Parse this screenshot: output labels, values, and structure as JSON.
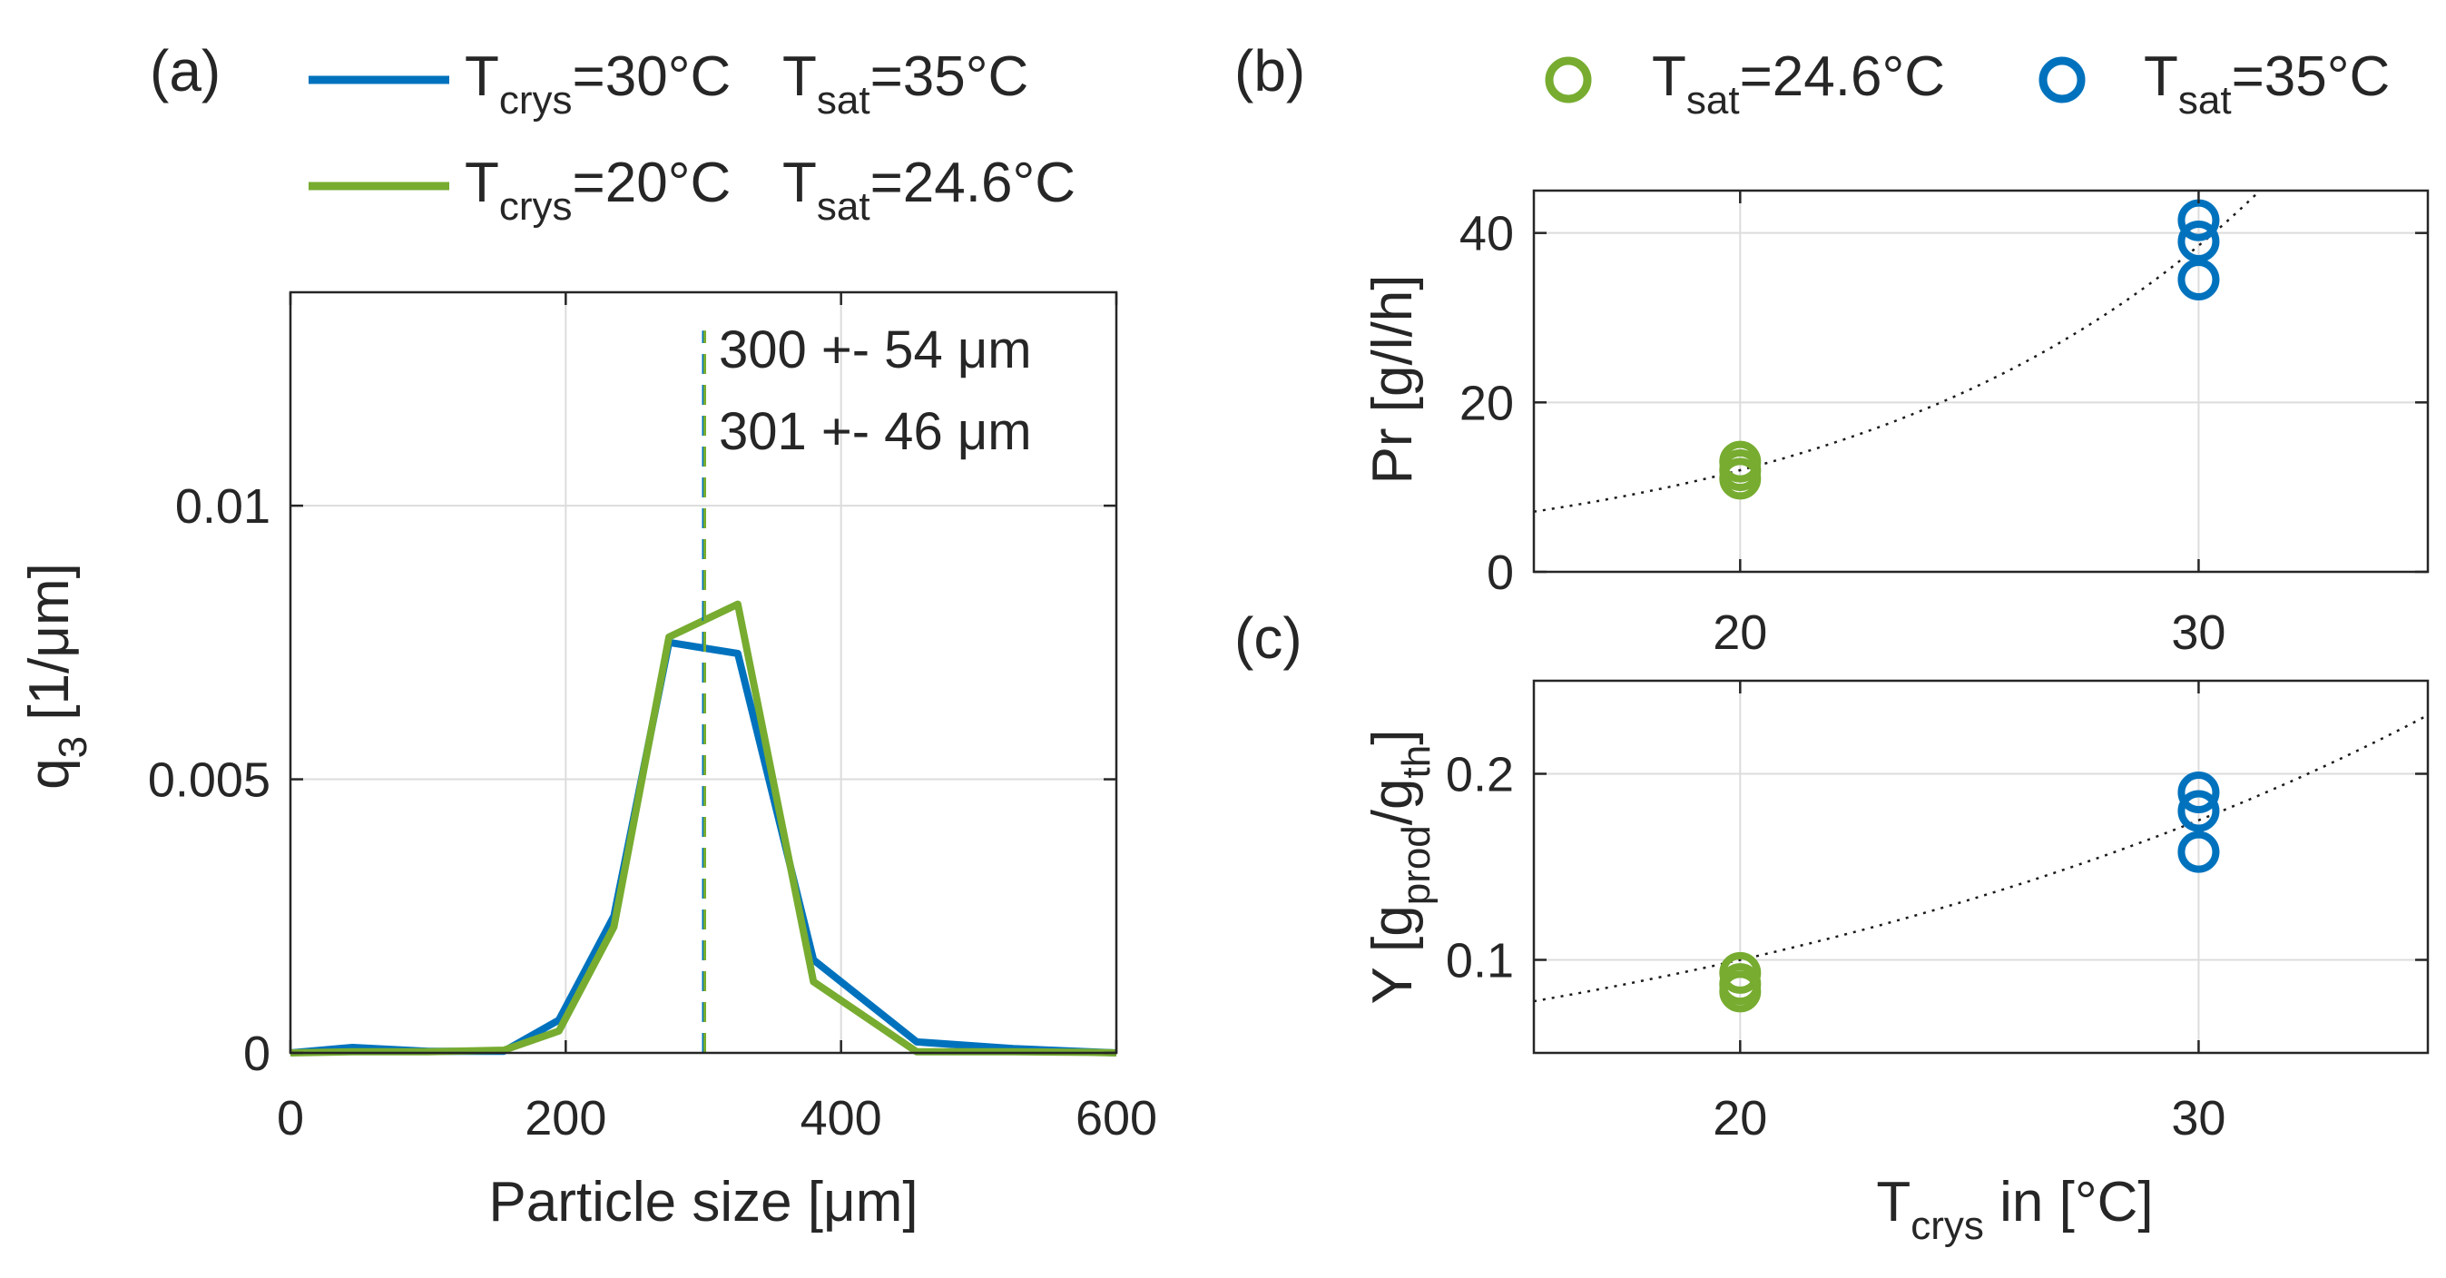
{
  "colors": {
    "blue": "#0072BD",
    "green": "#77AC30",
    "axis": "#262626",
    "grid": "#dcdcdc"
  },
  "chart_data": [
    {
      "id": "a",
      "panel_label": "(a)",
      "type": "line",
      "xlabel": "Particle size [μm]",
      "ylabel_main": "q",
      "ylabel_sub": "3",
      "ylabel_rest": " [1/μm]",
      "xlim": [
        0,
        600
      ],
      "ylim": [
        0,
        0.0139
      ],
      "xticks": [
        0,
        200,
        400,
        600
      ],
      "xtick_labels": [
        "0",
        "200",
        "400",
        "600"
      ],
      "yticks": [
        0,
        0.005,
        0.01
      ],
      "ytick_labels": [
        "0",
        "0.005",
        "0.01"
      ],
      "grid": true,
      "legend": [
        {
          "color": "blue",
          "t_main": "T",
          "t_sub": "crys",
          "t_val": "=30°C",
          "s_main": "T",
          "s_sub": "sat",
          "s_val": "=35°C"
        },
        {
          "color": "green",
          "t_main": "T",
          "t_sub": "crys",
          "t_val": "=20°C",
          "s_main": "T",
          "s_sub": "sat",
          "s_val": "=24.6°C"
        }
      ],
      "series": [
        {
          "name": "Tcrys=30°C Tsat=35°C",
          "color": "blue",
          "x": [
            0,
            45,
            100,
            155,
            195,
            235,
            275,
            325,
            380,
            455,
            525,
            580,
            600
          ],
          "y": [
            0,
            0.0001,
            3e-05,
            3e-05,
            0.0006,
            0.0025,
            0.0075,
            0.0073,
            0.0017,
            0.0002,
            8e-05,
            2e-05,
            0
          ]
        },
        {
          "name": "Tcrys=20°C Tsat=24.6°C",
          "color": "green",
          "x": [
            0,
            45,
            100,
            155,
            195,
            235,
            275,
            325,
            380,
            455,
            525,
            580,
            600
          ],
          "y": [
            0,
            2e-05,
            2e-05,
            5e-05,
            0.0004,
            0.0023,
            0.0076,
            0.0082,
            0.0013,
            2e-05,
            2e-05,
            1e-05,
            0
          ]
        }
      ],
      "vlines": [
        {
          "x": 300,
          "color": "blue",
          "y_top": 0.0132
        },
        {
          "x": 301,
          "color": "green",
          "y_top": 0.0132
        }
      ],
      "annotations": [
        {
          "text": "300 +- 54 μm",
          "color": "blue"
        },
        {
          "text": "301 +- 46 μm",
          "color": "green"
        }
      ]
    },
    {
      "id": "b",
      "panel_label": "(b)",
      "type": "scatter",
      "ylabel_main": "Pr [g/l/h]",
      "xlim": [
        15.5,
        35
      ],
      "ylim": [
        0,
        45
      ],
      "xticks": [
        20,
        30
      ],
      "xtick_labels": [
        "20",
        "30"
      ],
      "yticks": [
        0,
        20,
        40
      ],
      "ytick_labels": [
        "0",
        "20",
        "40"
      ],
      "grid": true,
      "legend": [
        {
          "color": "green",
          "main": "T",
          "sub": "sat",
          "val": "=24.6°C"
        },
        {
          "color": "blue",
          "main": "T",
          "sub": "sat",
          "val": "=35°C"
        }
      ],
      "series": [
        {
          "name": "Tsat=24.6°C",
          "color": "green",
          "x": [
            20,
            20,
            20
          ],
          "y": [
            13,
            12,
            11
          ]
        },
        {
          "name": "Tsat=35°C",
          "color": "blue",
          "x": [
            30,
            30,
            30
          ],
          "y": [
            41.5,
            39,
            34.5
          ]
        }
      ],
      "fit": {
        "type": "exponential",
        "x0": 20,
        "y0": 12,
        "x1": 30,
        "y1": 38.5
      }
    },
    {
      "id": "c",
      "panel_label": "(c)",
      "type": "scatter",
      "xlabel_main": "T",
      "xlabel_sub": "crys",
      "xlabel_rest": " in [°C]",
      "ylabel_main": "Y [g",
      "ylabel_sub1": "prod",
      "ylabel_mid": "/g",
      "ylabel_sub2": "th",
      "ylabel_end": "]",
      "xlim": [
        15.5,
        35
      ],
      "ylim": [
        0.05,
        0.25
      ],
      "xticks": [
        20,
        30
      ],
      "xtick_labels": [
        "20",
        "30"
      ],
      "yticks": [
        0.1,
        0.2
      ],
      "ytick_labels": [
        "0.1",
        "0.2"
      ],
      "grid": true,
      "series": [
        {
          "name": "Tsat=24.6°C",
          "color": "green",
          "x": [
            20,
            20,
            20
          ],
          "y": [
            0.093,
            0.087,
            0.083
          ]
        },
        {
          "name": "Tsat=35°C",
          "color": "blue",
          "x": [
            30,
            30,
            30
          ],
          "y": [
            0.19,
            0.18,
            0.158
          ]
        }
      ],
      "fit": {
        "type": "exponential",
        "x0": 20,
        "y0": 0.1,
        "x1": 30,
        "y1": 0.175
      }
    }
  ]
}
